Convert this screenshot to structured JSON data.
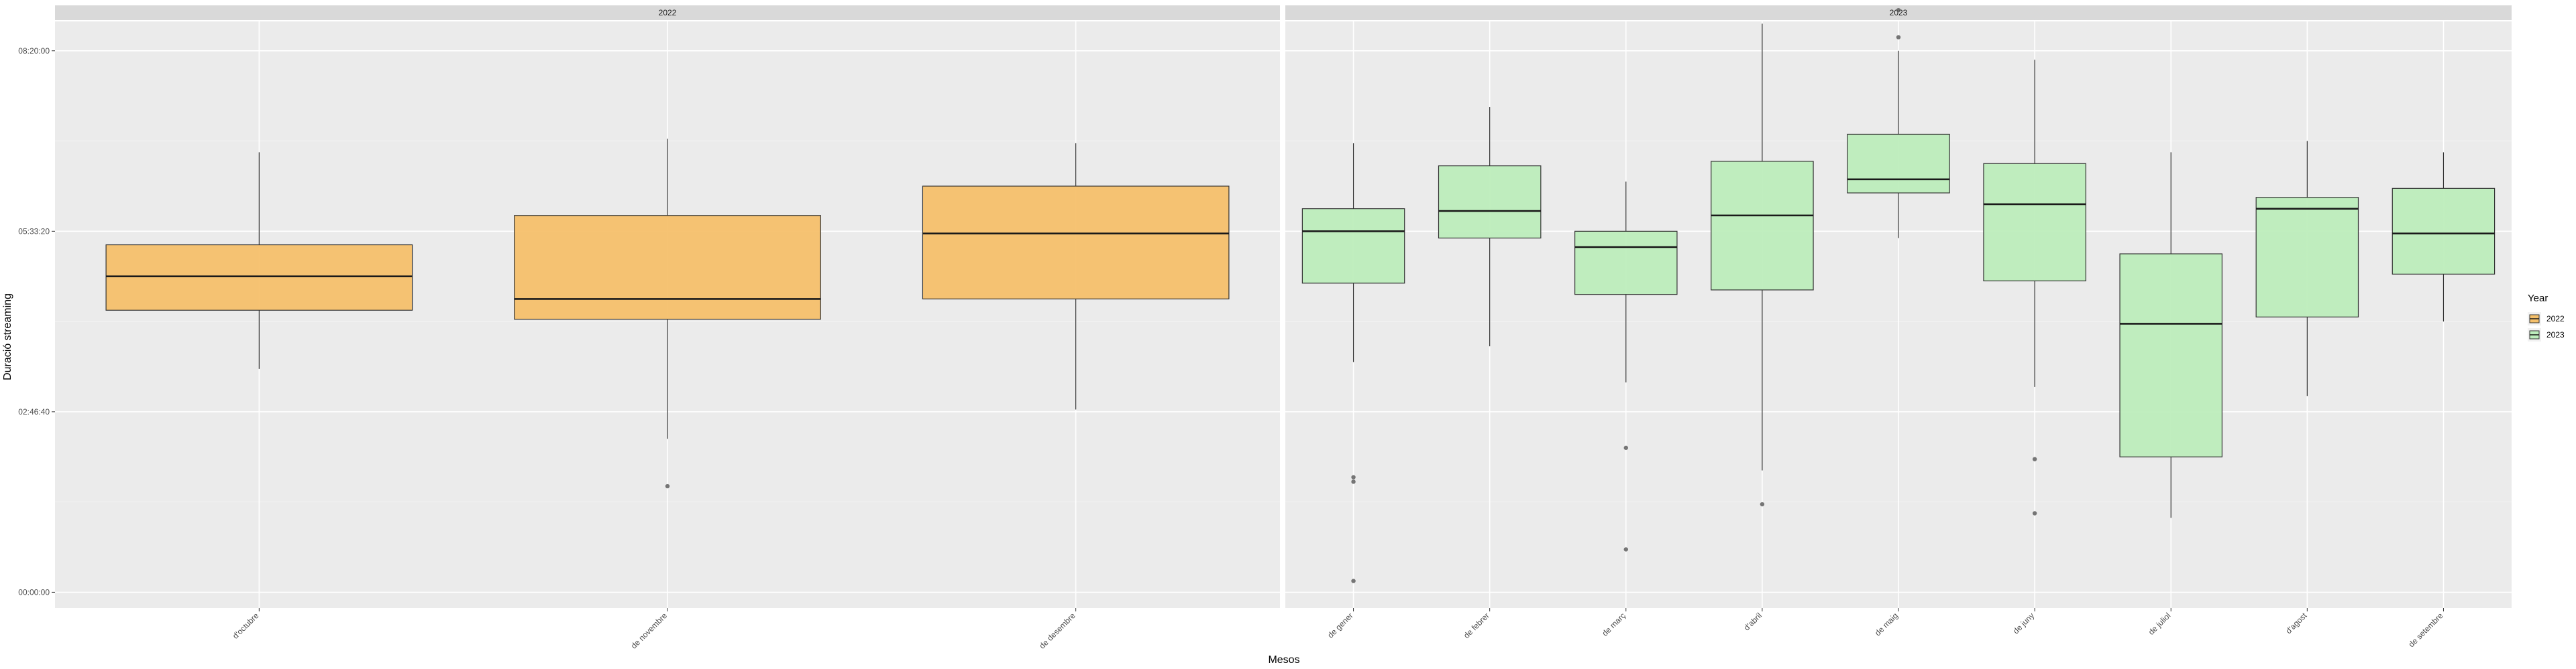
{
  "chart_data": {
    "type": "boxplot",
    "xlabel": "Mesos",
    "ylabel": "Duració streaming",
    "ylim_seconds": [
      -700,
      25300
    ],
    "y_ticks": [
      {
        "value": 0,
        "label": "00:00:00"
      },
      {
        "value": 8000,
        "label": "02:46:40"
      },
      {
        "value": 16000,
        "label": "05:33:20"
      },
      {
        "value": 24000,
        "label": "08:20:00"
      }
    ],
    "legend": {
      "title": "Year",
      "position": "right",
      "items": [
        {
          "label": "2022",
          "color": "#F5C06B"
        },
        {
          "label": "2023",
          "color": "#BDEDBC"
        }
      ]
    },
    "colors": {
      "panel_bg": "#EBEBEB",
      "strip_bg": "#D9D9D9",
      "grid": "#FFFFFF",
      "box_edge": "#333333",
      "outlier": "#555555"
    },
    "facets": [
      {
        "label": "2022",
        "series": "2022",
        "categories": [
          "d'octubre",
          "de novembre",
          "de desembre"
        ],
        "boxes": [
          {
            "category": "d'octubre",
            "whisker_low": 9900,
            "q1": 12500,
            "median": 14000,
            "q3": 15400,
            "whisker_high": 19500,
            "outliers": []
          },
          {
            "category": "de novembre",
            "whisker_low": 6800,
            "q1": 12100,
            "median": 13000,
            "q3": 16700,
            "whisker_high": 20100,
            "outliers": [
              4700
            ]
          },
          {
            "category": "de desembre",
            "whisker_low": 8100,
            "q1": 13000,
            "median": 15900,
            "q3": 18000,
            "whisker_high": 19900,
            "outliers": []
          }
        ]
      },
      {
        "label": "2023",
        "series": "2023",
        "categories": [
          "de gener",
          "de febrer",
          "de març",
          "d'abril",
          "de maig",
          "de juny",
          "de juliol",
          "d'agost",
          "de setembre"
        ],
        "boxes": [
          {
            "category": "de gener",
            "whisker_low": 10200,
            "q1": 13700,
            "median": 16000,
            "q3": 17000,
            "whisker_high": 19900,
            "outliers": [
              5100,
              4900,
              500
            ]
          },
          {
            "category": "de febrer",
            "whisker_low": 10900,
            "q1": 15700,
            "median": 16900,
            "q3": 18900,
            "whisker_high": 21500,
            "outliers": []
          },
          {
            "category": "de març",
            "whisker_low": 9300,
            "q1": 13200,
            "median": 15300,
            "q3": 16000,
            "whisker_high": 18200,
            "outliers": [
              6400,
              1900
            ]
          },
          {
            "category": "d'abril",
            "whisker_low": 5400,
            "q1": 13400,
            "median": 16700,
            "q3": 19100,
            "whisker_high": 25200,
            "outliers": [
              3900
            ]
          },
          {
            "category": "de maig",
            "whisker_low": 15700,
            "q1": 17700,
            "median": 18300,
            "q3": 20300,
            "whisker_high": 24000,
            "outliers": [
              25800,
              24600
            ]
          },
          {
            "category": "de juny",
            "whisker_low": 9100,
            "q1": 13800,
            "median": 17200,
            "q3": 19000,
            "whisker_high": 23600,
            "outliers": [
              5900,
              3500
            ]
          },
          {
            "category": "de juliol",
            "whisker_low": 3300,
            "q1": 6000,
            "median": 11900,
            "q3": 15000,
            "whisker_high": 19500,
            "outliers": []
          },
          {
            "category": "d'agost",
            "whisker_low": 8700,
            "q1": 12200,
            "median": 17000,
            "q3": 17500,
            "whisker_high": 20000,
            "outliers": []
          },
          {
            "category": "de setembre",
            "whisker_low": 12000,
            "q1": 14100,
            "median": 15900,
            "q3": 17900,
            "whisker_high": 19500,
            "outliers": []
          }
        ]
      }
    ]
  }
}
